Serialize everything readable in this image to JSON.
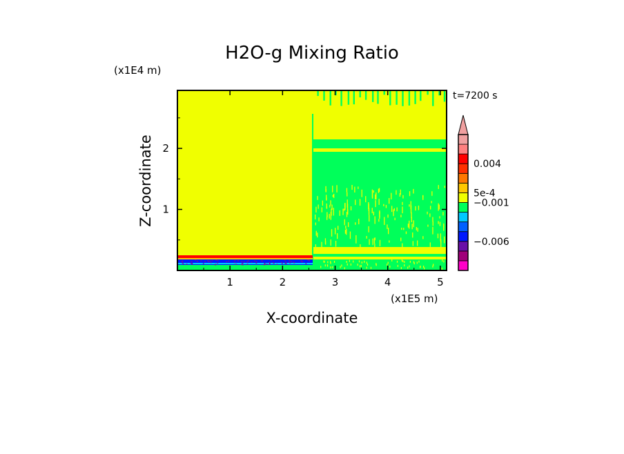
{
  "chart_data": {
    "type": "heatmap",
    "title": "H2O-g Mixing Ratio",
    "xlabel": "X-coordinate",
    "ylabel": "Z-coordinate",
    "x_scale_label": "(x1E5 m)",
    "y_scale_label": "(x1E4 m)",
    "time_label": "t=7200 s",
    "x_ticks": [
      "1",
      "2",
      "3",
      "4",
      "5"
    ],
    "y_ticks": [
      "1",
      "2"
    ],
    "xlim": [
      0,
      5.12
    ],
    "ylim": [
      0,
      2.95
    ],
    "colorbar": {
      "labels": [
        "0.004",
        "5e-4",
        "−0.001",
        "−0.006"
      ],
      "colors": [
        "#ff00c8",
        "#a0007a",
        "#6a10a8",
        "#0018ff",
        "#0060ff",
        "#00c8ff",
        "#00ff5a",
        "#f0ff00",
        "#ffc800",
        "#ff7800",
        "#ff3000",
        "#ff0000",
        "#ff8080",
        "#f0a0a0"
      ]
    },
    "regions": [
      {
        "name": "upper field",
        "color": "#f0ff00"
      },
      {
        "name": "right field",
        "color": "#00ff5a"
      },
      {
        "name": "surface layer",
        "color": "#0018ff"
      }
    ]
  }
}
